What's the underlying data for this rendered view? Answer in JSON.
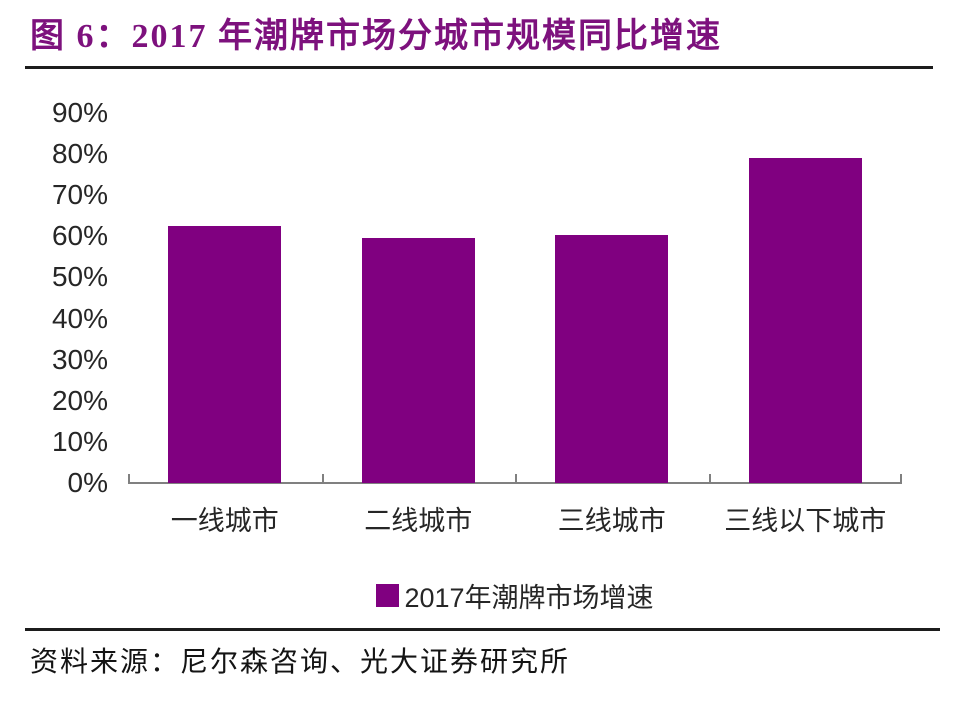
{
  "figure": {
    "title": "图 6：2017 年潮牌市场分城市规模同比增速",
    "source_label": "资料来源：尼尔森咨询、光大证券研究所"
  },
  "chart_data": {
    "type": "bar",
    "title": "2017 年潮牌市场分城市规模同比增速",
    "categories": [
      "一线城市",
      "二线城市",
      "三线城市",
      "三线以下城市"
    ],
    "series": [
      {
        "name": "2017年潮牌市场增速",
        "values": [
          62.5,
          59.5,
          60.3,
          79
        ]
      }
    ],
    "xlabel": "",
    "ylabel": "",
    "ylim": [
      0,
      90
    ],
    "ytick_step": 10,
    "ytick_suffix": "%",
    "grid": false,
    "legend_position": "bottom",
    "bar_color": "#800080"
  },
  "colors": {
    "bar": "#800080",
    "title_accent": "#7D117D",
    "rule": "#1c1c1c",
    "axis": "#808080",
    "label_text": "#262626"
  }
}
